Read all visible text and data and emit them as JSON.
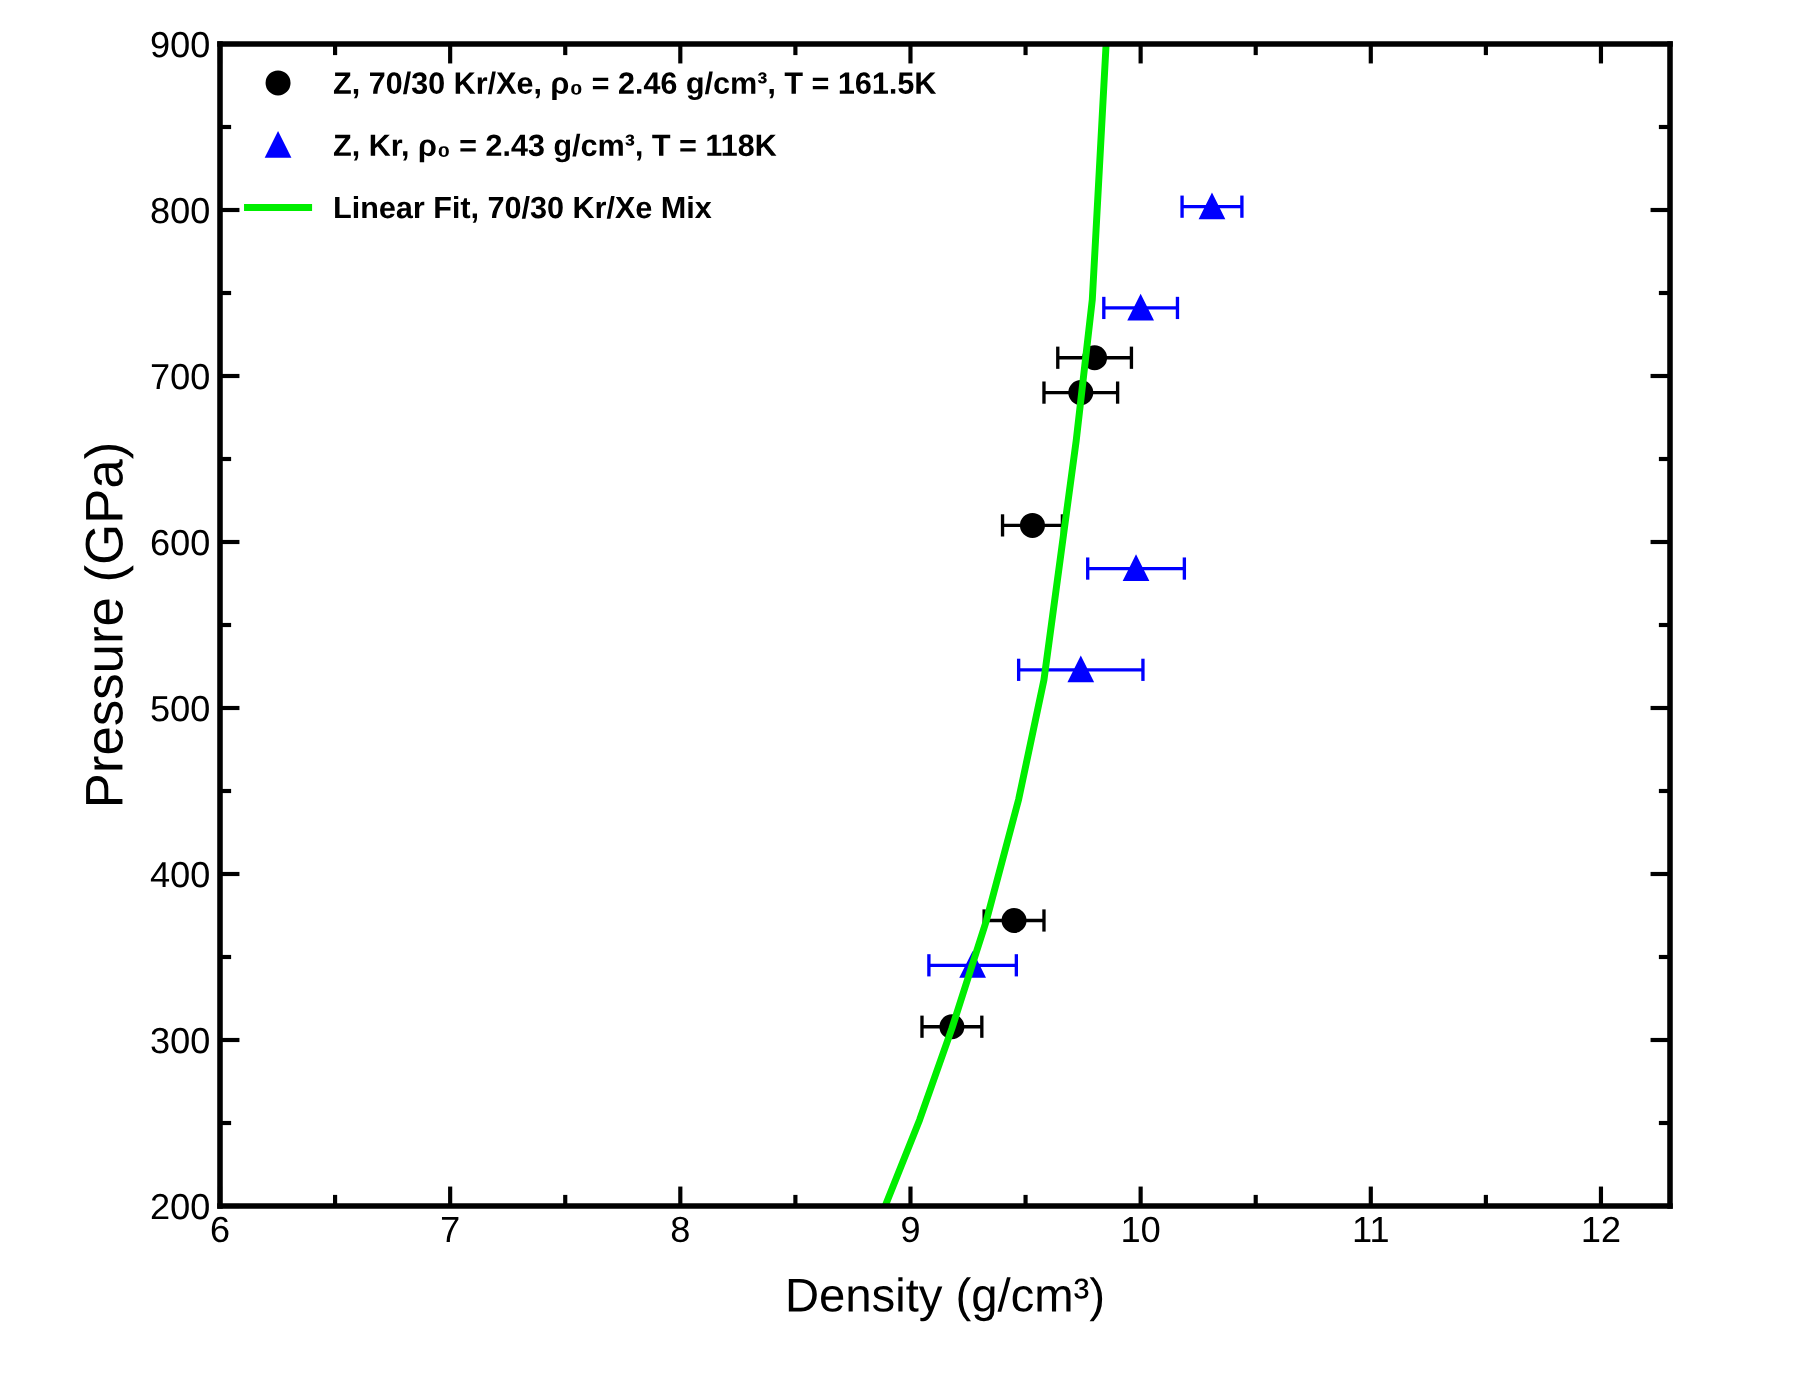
{
  "chart_data": {
    "type": "scatter",
    "xlabel": "Density (g/cm³)",
    "ylabel": "Pressure (GPa)",
    "xlim": [
      6,
      12.3
    ],
    "ylim": [
      200,
      900
    ],
    "xticks": [
      6,
      {
        "value": 6.5,
        "label": null
      },
      7,
      {
        "value": 7.5,
        "label": null
      },
      8,
      {
        "value": 8.5,
        "label": null
      },
      9,
      {
        "value": 9.5,
        "label": null
      },
      10,
      {
        "value": 10.5,
        "label": null
      },
      11,
      {
        "value": 11.5,
        "label": null
      },
      12
    ],
    "yticks": [
      200,
      {
        "value": 250,
        "label": null
      },
      300,
      {
        "value": 350,
        "label": null
      },
      400,
      {
        "value": 450,
        "label": null
      },
      500,
      {
        "value": 550,
        "label": null
      },
      600,
      {
        "value": 650,
        "label": null
      },
      700,
      {
        "value": 750,
        "label": null
      },
      800,
      {
        "value": 850,
        "label": null
      },
      900
    ],
    "grid": false,
    "legend": "top left",
    "series": [
      {
        "name": "Z, 70/30 Kr/Xe, ρ₀ = 2.46 g/cm³, T = 161.5K",
        "marker": "circle",
        "color": "#000000",
        "x": [
          9.8,
          9.74,
          9.53,
          9.45,
          9.18
        ],
        "values": [
          711,
          690,
          610,
          372,
          308
        ],
        "xerrors": [
          0.16,
          0.16,
          0.13,
          0.13,
          0.13
        ]
      },
      {
        "name": "Z, Kr, ρ₀ = 2.43 g/cm³, T = 118K",
        "marker": "triangle",
        "color": "#0000ff",
        "x": [
          10.31,
          10.0,
          9.98,
          9.74,
          9.27
        ],
        "values": [
          802,
          741,
          584,
          523,
          345
        ],
        "xerrors": [
          0.13,
          0.16,
          0.21,
          0.27,
          0.19
        ]
      },
      {
        "name": "Linear Fit, 70/30 Kr/Xe Mix",
        "type": "line",
        "marker": "none",
        "line_style": "solid",
        "color": "#00ee00",
        "x": [
          8.89,
          9.04,
          9.18,
          9.33,
          9.47,
          9.58,
          9.65,
          9.72,
          9.79,
          9.85
        ],
        "values": [
          200,
          252,
          307,
          372,
          445,
          517,
          589,
          661,
          746,
          900
        ]
      }
    ]
  }
}
